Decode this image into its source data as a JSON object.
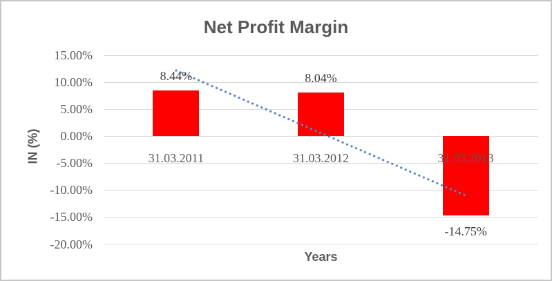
{
  "chart_data": {
    "type": "bar",
    "title": "Net Profit Margin",
    "xlabel": "Years",
    "ylabel": "IN (%)",
    "categories": [
      "31.03.2011",
      "31.03.2012",
      "31.03.2013"
    ],
    "values": [
      8.44,
      8.04,
      -14.75
    ],
    "data_labels": [
      "8.44%",
      "8.04%",
      "-14.75%"
    ],
    "yticks": [
      15,
      10,
      5,
      0,
      -5,
      -10,
      -15,
      -20
    ],
    "ytick_labels": [
      "15.00%",
      "10.00%",
      "5.00%",
      "0.00%",
      "-5.00%",
      "-10.00%",
      "-15.00%",
      "-20.00%"
    ],
    "ylim": [
      -20,
      15
    ],
    "grid": true,
    "legend": false,
    "bar_color": "#ff0000",
    "gridline_color": "#d9d9d9",
    "text_color": "#595959",
    "data_label_color": "#3d3d3d",
    "trendline": {
      "type": "linear",
      "style": "dotted",
      "color": "#4e87c7",
      "start_value_pct": 12.17,
      "end_value_pct": -11.02
    }
  }
}
